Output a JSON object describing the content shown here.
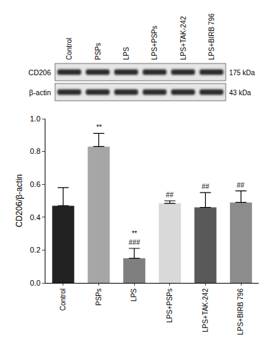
{
  "blot": {
    "lanes": [
      "Control",
      "PSPs",
      "LPS",
      "LPS+PSPs",
      "LPS+TAK-242",
      "LPS+BIRB 796"
    ],
    "rows": [
      {
        "label": "CD206",
        "size": "175 kDa"
      },
      {
        "label": "β-actin",
        "size": "43 kDa"
      }
    ]
  },
  "chart_data": {
    "type": "bar",
    "categories": [
      "Control",
      "PSPs",
      "LPS",
      "LPS+PSPs",
      "LPS+TAK-242",
      "LPS+BIRB 796"
    ],
    "values": [
      0.47,
      0.83,
      0.15,
      0.485,
      0.46,
      0.49
    ],
    "errors": [
      0.11,
      0.08,
      0.06,
      0.015,
      0.09,
      0.07
    ],
    "colors": [
      "#222222",
      "#a6a6a6",
      "#7f7f7f",
      "#d9d9d9",
      "#595959",
      "#8c8c8c"
    ],
    "ylabel": "CD206/β-actin",
    "ylim": [
      0,
      1
    ],
    "yticks": [
      {
        "value": 0,
        "label": "0.0"
      },
      0.2,
      0.4,
      0.6,
      0.8,
      {
        "value": 1,
        "label": "1.0"
      }
    ],
    "grid": false,
    "annotations": [
      {
        "category": "PSPs",
        "text": [
          "**"
        ]
      },
      {
        "category": "LPS",
        "text": [
          "**",
          "###"
        ]
      },
      {
        "category": "LPS+PSPs",
        "text": [
          "##"
        ]
      },
      {
        "category": "LPS+TAK-242",
        "text": [
          "##"
        ]
      },
      {
        "category": "LPS+BIRB 796",
        "text": [
          "##"
        ]
      }
    ]
  }
}
